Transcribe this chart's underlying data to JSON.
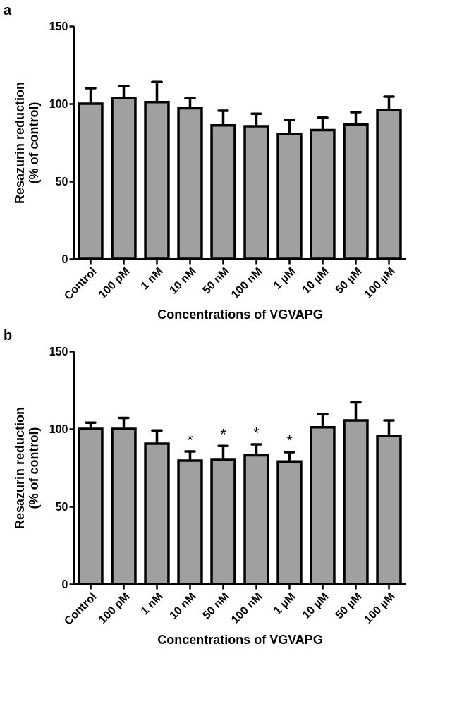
{
  "chart_data": [
    {
      "type": "bar",
      "title": "a",
      "xlabel": "Concentrations of VGVAPG",
      "ylabel": "Resazurin reduction\n(% of control)",
      "categories": [
        "Control",
        "100 pM",
        "1 nM",
        "10 nM",
        "50 nM",
        "100 nM",
        "1 µM",
        "10 µM",
        "50 µM",
        "100 µM"
      ],
      "values": [
        100,
        103.5,
        101,
        97,
        86,
        85.5,
        80.5,
        83,
        86.5,
        96
      ],
      "color": "#a0a0a0",
      "errors": [
        [
          100,
          110
        ],
        [
          103.5,
          111.5
        ],
        [
          101,
          114
        ],
        [
          97,
          103.5
        ],
        [
          86,
          95.5
        ],
        [
          85.5,
          93.5
        ],
        [
          80.5,
          89.5
        ],
        [
          83,
          91
        ],
        [
          86.5,
          94.5
        ],
        [
          96,
          104.5
        ]
      ],
      "ylim": [
        0,
        150
      ],
      "yticks": [
        0,
        50,
        100,
        150
      ],
      "grid": false
    },
    {
      "type": "bar",
      "title": "b",
      "xlabel": "Concentrations of VGVAPG",
      "ylabel": "Resazurin reduction\n(% of control)",
      "categories": [
        "Control",
        "100 pM",
        "1 nM",
        "10 nM",
        "50 nM",
        "100 nM",
        "1 µM",
        "10 µM",
        "50 µM",
        "100 µM"
      ],
      "values": [
        100,
        100,
        90.5,
        79.5,
        80,
        83,
        79,
        101,
        105.5,
        95.5
      ],
      "color": "#a0a0a0",
      "errors": [
        [
          100,
          104
        ],
        [
          100,
          107
        ],
        [
          90.5,
          99
        ],
        [
          79.5,
          85.5
        ],
        [
          80,
          89
        ],
        [
          83,
          90
        ],
        [
          79,
          85
        ],
        [
          101,
          109.5
        ],
        [
          105.5,
          117
        ],
        [
          95.5,
          105.5
        ]
      ],
      "ylim": [
        0,
        150
      ],
      "yticks": [
        0,
        50,
        100,
        150
      ],
      "grid": false,
      "annotations": [
        {
          "text": "*",
          "x": "10 nM",
          "y": 85.5
        },
        {
          "text": "*",
          "x": "50 nM",
          "y": 89
        },
        {
          "text": "*",
          "x": "100 nM",
          "y": 90
        },
        {
          "text": "*",
          "x": "1 µM",
          "y": 85
        }
      ]
    }
  ]
}
